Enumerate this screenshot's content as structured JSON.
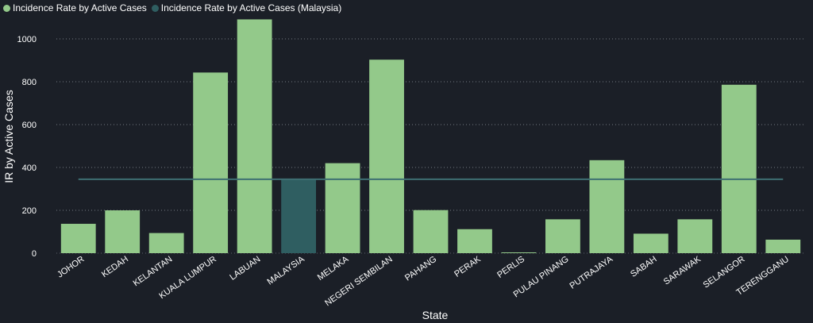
{
  "legend": {
    "state_label": "Incidence Rate by Active Cases",
    "malaysia_label": "Incidence Rate by Active Cases (Malaysia)"
  },
  "colors": {
    "background": "#1b1f27",
    "state_bar": "#93c98a",
    "malaysia_bar": "#2f5e61",
    "reference_line": "#3e6f72",
    "grid": "#8a8f99"
  },
  "chart_data": {
    "type": "bar",
    "xlabel": "State",
    "ylabel": "IR by Active Cases",
    "ylim": [
      0,
      1100
    ],
    "yticks": [
      0,
      200,
      400,
      600,
      800,
      1000
    ],
    "grid": "horizontal dotted",
    "legend_position": "top-left",
    "categories": [
      "JOHOR",
      "KEDAH",
      "KELANTAN",
      "KUALA LUMPUR",
      "LABUAN",
      "MALAYSIA",
      "MELAKA",
      "NEGERI SEMBILAN",
      "PAHANG",
      "PERAK",
      "PERLIS",
      "PULAU PINANG",
      "PUTRAJAYA",
      "SABAH",
      "SARAWAK",
      "SELANGOR",
      "TERENGGANU"
    ],
    "series": [
      {
        "name": "Incidence Rate by Active Cases",
        "values": [
          137,
          200,
          94,
          843,
          1091,
          null,
          420,
          903,
          201,
          112,
          3,
          158,
          434,
          91,
          158,
          786,
          63
        ]
      },
      {
        "name": "Incidence Rate by Active Cases (Malaysia)",
        "values": [
          null,
          null,
          null,
          null,
          null,
          345,
          null,
          null,
          null,
          null,
          null,
          null,
          null,
          null,
          null,
          null,
          null
        ]
      }
    ],
    "reference_line": {
      "series": "Incidence Rate by Active Cases (Malaysia)",
      "value": 345
    }
  }
}
